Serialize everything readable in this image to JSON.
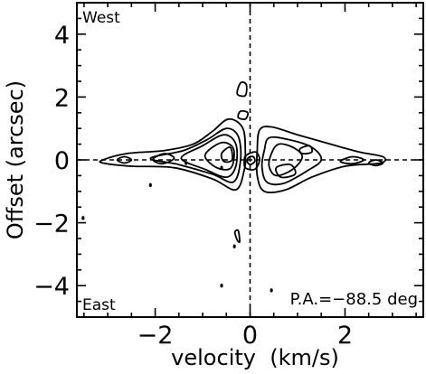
{
  "chart_data": {
    "type": "contour",
    "title": "",
    "xlabel": "velocity  (km/s)",
    "ylabel": "Offset (arcsec)",
    "xlim": [
      -3.65,
      3.65
    ],
    "ylim": [
      -5.0,
      5.0
    ],
    "xticks": [
      -2,
      0,
      2
    ],
    "yticks": [
      4,
      2,
      0,
      -2,
      -4
    ],
    "xtick_labels": [
      "−2",
      "0",
      "2"
    ],
    "ytick_labels": [
      "4",
      "2",
      "0",
      "−2",
      "−4"
    ],
    "grid": false,
    "reference_lines": [
      {
        "orientation": "vertical",
        "value": 0,
        "style": "dashed"
      },
      {
        "orientation": "horizontal",
        "value": 0,
        "style": "dashed"
      }
    ],
    "annotations": {
      "top_left": "West",
      "bottom_left": "East",
      "bottom_right": "P.A.=−88.5 deg"
    },
    "contours": [
      {
        "points": [
          [
            -3.1,
            0.0
          ],
          [
            -2.6,
            0.2
          ],
          [
            -1.8,
            0.3
          ],
          [
            -1.2,
            0.5
          ],
          [
            -0.8,
            0.9
          ],
          [
            -0.45,
            1.3
          ],
          [
            -0.15,
            1.0
          ],
          [
            -0.1,
            0.2
          ],
          [
            -0.12,
            -0.3
          ],
          [
            -0.3,
            -0.95
          ],
          [
            -0.8,
            -0.6
          ],
          [
            -1.6,
            -0.25
          ],
          [
            -2.5,
            -0.2
          ],
          [
            -3.1,
            -0.1
          ]
        ]
      },
      {
        "points": [
          [
            -2.1,
            0.05
          ],
          [
            -1.4,
            0.3
          ],
          [
            -0.9,
            0.65
          ],
          [
            -0.5,
            1.0
          ],
          [
            -0.25,
            0.75
          ],
          [
            -0.2,
            0.0
          ],
          [
            -0.35,
            -0.7
          ],
          [
            -0.8,
            -0.45
          ],
          [
            -1.5,
            -0.15
          ]
        ]
      },
      {
        "points": [
          [
            -1.45,
            0.05
          ],
          [
            -1.0,
            0.45
          ],
          [
            -0.55,
            0.8
          ],
          [
            -0.3,
            0.5
          ],
          [
            -0.3,
            -0.2
          ],
          [
            -0.5,
            -0.55
          ],
          [
            -0.95,
            -0.3
          ]
        ]
      },
      {
        "points": [
          [
            -0.95,
            0.15
          ],
          [
            -0.6,
            0.55
          ],
          [
            -0.35,
            0.35
          ],
          [
            -0.4,
            -0.25
          ],
          [
            -0.7,
            -0.25
          ]
        ]
      },
      {
        "points": [
          [
            -0.6,
            0.2
          ],
          [
            -0.42,
            0.4
          ],
          [
            -0.38,
            0.0
          ],
          [
            -0.55,
            -0.05
          ]
        ]
      },
      {
        "points": [
          [
            -2.05,
            0.02
          ],
          [
            -1.8,
            0.2
          ],
          [
            -1.6,
            0.05
          ],
          [
            -1.85,
            -0.12
          ]
        ]
      },
      {
        "points": [
          [
            -2.8,
            0.0
          ],
          [
            -2.65,
            0.1
          ],
          [
            -2.5,
            0.0
          ],
          [
            -2.65,
            -0.1
          ]
        ]
      },
      {
        "points": [
          [
            0.15,
            0.3
          ],
          [
            0.2,
            0.95
          ],
          [
            0.45,
            1.05
          ],
          [
            1.0,
            0.8
          ],
          [
            1.7,
            0.5
          ],
          [
            2.3,
            0.25
          ],
          [
            2.8,
            0.1
          ],
          [
            2.75,
            -0.1
          ],
          [
            2.0,
            -0.2
          ],
          [
            1.3,
            -0.55
          ],
          [
            0.75,
            -0.95
          ],
          [
            0.3,
            -1.0
          ],
          [
            0.15,
            -0.5
          ]
        ]
      },
      {
        "points": [
          [
            0.3,
            0.3
          ],
          [
            0.4,
            0.7
          ],
          [
            0.8,
            0.65
          ],
          [
            1.3,
            0.4
          ],
          [
            1.5,
            0.0
          ],
          [
            1.2,
            -0.35
          ],
          [
            0.7,
            -0.75
          ],
          [
            0.35,
            -0.7
          ],
          [
            0.25,
            -0.2
          ]
        ]
      },
      {
        "points": [
          [
            0.45,
            0.2
          ],
          [
            0.6,
            0.5
          ],
          [
            0.9,
            0.4
          ],
          [
            1.1,
            0.1
          ],
          [
            0.9,
            -0.3
          ],
          [
            0.55,
            -0.5
          ],
          [
            0.4,
            -0.2
          ]
        ]
      },
      {
        "points": [
          [
            0.55,
            -0.25
          ],
          [
            0.85,
            -0.15
          ],
          [
            0.95,
            -0.45
          ],
          [
            0.65,
            -0.55
          ]
        ]
      },
      {
        "points": [
          [
            1.05,
            0.35
          ],
          [
            1.25,
            0.45
          ],
          [
            1.3,
            0.25
          ],
          [
            1.1,
            0.2
          ]
        ]
      },
      {
        "points": [
          [
            1.9,
            -0.05
          ],
          [
            2.15,
            0.1
          ],
          [
            2.4,
            0.0
          ],
          [
            2.15,
            -0.12
          ]
        ]
      },
      {
        "points": [
          [
            2.5,
            -0.1
          ],
          [
            2.65,
            0.0
          ],
          [
            2.8,
            -0.1
          ],
          [
            2.65,
            -0.18
          ]
        ]
      },
      {
        "points": [
          [
            -0.08,
            0.15
          ],
          [
            0.12,
            0.25
          ],
          [
            0.2,
            0.0
          ],
          [
            0.1,
            -0.3
          ],
          [
            -0.1,
            -0.25
          ],
          [
            -0.12,
            0.0
          ]
        ]
      },
      {
        "points": [
          [
            -0.03,
            0.08
          ],
          [
            0.07,
            0.1
          ],
          [
            0.1,
            -0.05
          ],
          [
            0.0,
            -0.15
          ],
          [
            -0.06,
            -0.05
          ]
        ]
      },
      {
        "points": [
          [
            -0.27,
            2.1
          ],
          [
            -0.2,
            2.45
          ],
          [
            -0.08,
            2.4
          ],
          [
            -0.1,
            2.05
          ]
        ]
      },
      {
        "points": [
          [
            -0.25,
            1.35
          ],
          [
            -0.2,
            1.55
          ],
          [
            -0.05,
            1.5
          ],
          [
            -0.1,
            1.3
          ]
        ]
      },
      {
        "points": [
          [
            -0.32,
            -2.3
          ],
          [
            -0.27,
            -2.55
          ],
          [
            -0.22,
            -2.6
          ],
          [
            -0.25,
            -2.25
          ]
        ]
      }
    ],
    "isolated_points": [
      [
        -2.1,
        -0.8
      ],
      [
        -0.6,
        -4.0
      ],
      [
        -0.33,
        -2.75
      ],
      [
        0.45,
        -4.15
      ],
      [
        -3.52,
        -1.85
      ],
      [
        -0.6,
        -0.25
      ],
      [
        -1.35,
        -0.1
      ]
    ]
  }
}
